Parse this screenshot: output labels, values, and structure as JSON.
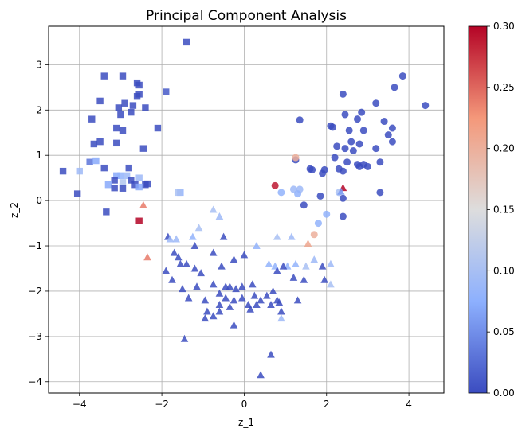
{
  "chart_data": {
    "type": "scatter",
    "title": "Principal Component Analysis",
    "xlabel": "z_1",
    "ylabel": "z_2",
    "xlim": [
      -4.75,
      4.85
    ],
    "ylim": [
      -4.25,
      3.85
    ],
    "xticks": [
      -4,
      -2,
      0,
      2,
      4
    ],
    "yticks": [
      -4,
      -3,
      -2,
      -1,
      0,
      1,
      2,
      3
    ],
    "grid": true,
    "colorbar": {
      "colormap": "coolwarm",
      "range": [
        0.0,
        0.3
      ],
      "ticks": [
        "0.00",
        "0.05",
        "0.10",
        "0.15",
        "0.20",
        "0.25",
        "0.30"
      ]
    },
    "series": [
      {
        "marker": "square",
        "points": [
          [
            -1.4,
            3.5,
            0.0
          ],
          [
            -3.4,
            2.75,
            0.0
          ],
          [
            -2.95,
            2.75,
            0.0
          ],
          [
            -2.6,
            2.6,
            0.0
          ],
          [
            -2.55,
            2.55,
            0.0
          ],
          [
            -2.55,
            2.35,
            0.0
          ],
          [
            -2.6,
            2.3,
            0.0
          ],
          [
            -1.9,
            2.4,
            0.01
          ],
          [
            -3.5,
            2.2,
            0.0
          ],
          [
            -2.9,
            2.15,
            0.0
          ],
          [
            -3.05,
            2.05,
            0.0
          ],
          [
            -2.7,
            2.1,
            0.0
          ],
          [
            -2.4,
            2.05,
            0.0
          ],
          [
            -2.75,
            1.95,
            0.0
          ],
          [
            -3.0,
            1.9,
            0.0
          ],
          [
            -3.7,
            1.8,
            0.0
          ],
          [
            -3.1,
            1.6,
            0.0
          ],
          [
            -2.95,
            1.55,
            0.0
          ],
          [
            -2.1,
            1.6,
            0.0
          ],
          [
            -3.5,
            1.3,
            0.0
          ],
          [
            -3.65,
            1.25,
            0.0
          ],
          [
            -3.1,
            1.27,
            0.0
          ],
          [
            -2.45,
            1.15,
            0.0
          ],
          [
            -3.75,
            0.85,
            0.03
          ],
          [
            -3.6,
            0.88,
            0.07
          ],
          [
            -4.4,
            0.65,
            0.0
          ],
          [
            -4.0,
            0.65,
            0.09
          ],
          [
            -3.4,
            0.72,
            0.0
          ],
          [
            -2.8,
            0.72,
            0.0
          ],
          [
            -3.1,
            0.55,
            0.07
          ],
          [
            -3.0,
            0.55,
            0.08
          ],
          [
            -2.85,
            0.55,
            0.09
          ],
          [
            -3.15,
            0.45,
            0.0
          ],
          [
            -2.75,
            0.45,
            0.0
          ],
          [
            -2.55,
            0.5,
            0.09
          ],
          [
            -3.3,
            0.35,
            0.07
          ],
          [
            -2.95,
            0.4,
            0.11
          ],
          [
            -2.65,
            0.35,
            0.0
          ],
          [
            -2.4,
            0.35,
            0.0
          ],
          [
            -2.35,
            0.37,
            0.0
          ],
          [
            -3.15,
            0.28,
            0.0
          ],
          [
            -2.95,
            0.27,
            0.0
          ],
          [
            -2.55,
            0.3,
            0.07
          ],
          [
            -4.05,
            0.15,
            0.0
          ],
          [
            -1.55,
            0.18,
            0.08
          ],
          [
            -1.6,
            0.18,
            0.1
          ],
          [
            -3.35,
            -0.25,
            0.0
          ],
          [
            -2.55,
            -0.45,
            0.3
          ]
        ]
      },
      {
        "marker": "circle",
        "points": [
          [
            4.4,
            2.1,
            0.0
          ],
          [
            3.85,
            2.75,
            0.0
          ],
          [
            3.65,
            2.5,
            0.0
          ],
          [
            3.2,
            2.15,
            0.0
          ],
          [
            2.4,
            2.35,
            0.0
          ],
          [
            2.85,
            1.95,
            0.0
          ],
          [
            3.4,
            1.75,
            0.0
          ],
          [
            3.6,
            1.6,
            0.0
          ],
          [
            2.45,
            1.9,
            0.0
          ],
          [
            2.75,
            1.8,
            0.0
          ],
          [
            2.1,
            1.65,
            0.0
          ],
          [
            2.15,
            1.62,
            0.0
          ],
          [
            2.55,
            1.55,
            0.0
          ],
          [
            2.9,
            1.55,
            0.0
          ],
          [
            3.5,
            1.45,
            0.0
          ],
          [
            1.35,
            1.78,
            0.0
          ],
          [
            2.6,
            1.3,
            0.0
          ],
          [
            2.8,
            1.25,
            0.0
          ],
          [
            3.6,
            1.3,
            0.0
          ],
          [
            2.25,
            1.2,
            0.0
          ],
          [
            2.45,
            1.15,
            0.0
          ],
          [
            2.65,
            1.1,
            0.0
          ],
          [
            3.2,
            1.15,
            0.0
          ],
          [
            2.2,
            0.95,
            0.0
          ],
          [
            3.3,
            0.85,
            0.0
          ],
          [
            2.9,
            0.8,
            0.0
          ],
          [
            2.5,
            0.85,
            0.0
          ],
          [
            1.25,
            0.9,
            0.0
          ],
          [
            2.8,
            0.75,
            0.0
          ],
          [
            3.0,
            0.75,
            0.0
          ],
          [
            2.75,
            0.8,
            0.0
          ],
          [
            1.6,
            0.7,
            0.0
          ],
          [
            1.65,
            0.68,
            0.0
          ],
          [
            1.95,
            0.68,
            0.0
          ],
          [
            2.3,
            0.7,
            0.0
          ],
          [
            2.4,
            0.65,
            0.0
          ],
          [
            1.9,
            0.6,
            0.0
          ],
          [
            1.25,
            0.95,
            0.2
          ],
          [
            0.75,
            0.33,
            0.29
          ],
          [
            1.35,
            0.25,
            0.09
          ],
          [
            1.2,
            0.25,
            0.09
          ],
          [
            0.9,
            0.18,
            0.08
          ],
          [
            1.3,
            0.15,
            0.08
          ],
          [
            1.85,
            0.1,
            0.0
          ],
          [
            2.3,
            0.18,
            0.1
          ],
          [
            3.3,
            0.18,
            0.0
          ],
          [
            2.4,
            0.05,
            0.0
          ],
          [
            1.45,
            -0.1,
            0.0
          ],
          [
            2.0,
            -0.3,
            0.08
          ],
          [
            2.4,
            -0.35,
            0.0
          ],
          [
            1.8,
            -0.5,
            0.08
          ],
          [
            1.7,
            -0.75,
            0.2
          ]
        ]
      },
      {
        "marker": "triangle",
        "points": [
          [
            -2.45,
            -0.1,
            0.24
          ],
          [
            -0.75,
            -0.2,
            0.1
          ],
          [
            -0.6,
            -0.35,
            0.09
          ],
          [
            -2.35,
            -1.25,
            0.24
          ],
          [
            2.4,
            0.28,
            0.3
          ],
          [
            2.35,
            0.2,
            0.06
          ],
          [
            -1.1,
            -0.6,
            0.1
          ],
          [
            -1.85,
            -0.8,
            0.0
          ],
          [
            -1.25,
            -0.8,
            0.08
          ],
          [
            -1.65,
            -0.85,
            0.09
          ],
          [
            -1.8,
            -0.85,
            0.09
          ],
          [
            -0.5,
            -0.8,
            0.0
          ],
          [
            1.55,
            -0.95,
            0.21
          ],
          [
            0.8,
            -0.8,
            0.1
          ],
          [
            1.15,
            -0.8,
            0.09
          ],
          [
            -1.2,
            -1.0,
            0.0
          ],
          [
            -0.75,
            -1.15,
            0.0
          ],
          [
            0.0,
            -1.2,
            0.0
          ],
          [
            -0.25,
            -1.3,
            0.0
          ],
          [
            0.3,
            -1.0,
            0.08
          ],
          [
            0.75,
            -1.45,
            0.08
          ],
          [
            1.05,
            -1.45,
            0.08
          ],
          [
            1.25,
            -1.4,
            0.08
          ],
          [
            1.5,
            -1.45,
            0.1
          ],
          [
            1.7,
            -1.3,
            0.09
          ],
          [
            2.1,
            -1.4,
            0.09
          ],
          [
            -1.7,
            -1.15,
            0.0
          ],
          [
            -1.6,
            -1.25,
            0.0
          ],
          [
            -1.55,
            -1.4,
            0.0
          ],
          [
            -1.4,
            -1.4,
            0.0
          ],
          [
            -1.2,
            -1.5,
            0.0
          ],
          [
            -1.05,
            -1.6,
            0.0
          ],
          [
            -0.55,
            -1.45,
            0.0
          ],
          [
            0.6,
            -1.4,
            0.08
          ],
          [
            0.8,
            -1.55,
            0.0
          ],
          [
            0.95,
            -1.45,
            0.0
          ],
          [
            1.2,
            -1.7,
            0.0
          ],
          [
            1.45,
            -1.75,
            0.0
          ],
          [
            1.9,
            -1.45,
            0.0
          ],
          [
            1.95,
            -1.75,
            0.0
          ],
          [
            -1.9,
            -1.55,
            0.0
          ],
          [
            -1.75,
            -1.75,
            0.0
          ],
          [
            -1.5,
            -1.95,
            0.0
          ],
          [
            -1.15,
            -1.9,
            0.0
          ],
          [
            -0.75,
            -1.85,
            0.0
          ],
          [
            -0.45,
            -1.9,
            0.0
          ],
          [
            -0.35,
            -1.9,
            0.0
          ],
          [
            -0.2,
            -1.95,
            0.0
          ],
          [
            -0.05,
            -1.9,
            0.0
          ],
          [
            0.2,
            -1.85,
            0.0
          ],
          [
            0.7,
            -2.0,
            0.0
          ],
          [
            2.1,
            -1.85,
            0.1
          ],
          [
            -0.6,
            -2.05,
            0.0
          ],
          [
            -0.45,
            -2.15,
            0.0
          ],
          [
            -0.25,
            -2.2,
            0.0
          ],
          [
            -0.05,
            -2.15,
            0.0
          ],
          [
            0.25,
            -2.1,
            0.0
          ],
          [
            0.4,
            -2.2,
            0.0
          ],
          [
            0.55,
            -2.1,
            0.0
          ],
          [
            0.8,
            -2.2,
            0.0
          ],
          [
            1.3,
            -2.2,
            0.0
          ],
          [
            -1.35,
            -2.15,
            0.0
          ],
          [
            -0.95,
            -2.2,
            0.0
          ],
          [
            -0.6,
            -2.3,
            0.0
          ],
          [
            -0.35,
            -2.35,
            0.0
          ],
          [
            0.1,
            -2.3,
            0.0
          ],
          [
            0.3,
            -2.3,
            0.0
          ],
          [
            0.65,
            -2.3,
            0.0
          ],
          [
            0.85,
            -2.25,
            0.0
          ],
          [
            -0.6,
            -2.45,
            0.0
          ],
          [
            -0.9,
            -2.45,
            0.0
          ],
          [
            0.15,
            -2.4,
            0.0
          ],
          [
            0.9,
            -2.45,
            0.0
          ],
          [
            -0.95,
            -2.6,
            0.0
          ],
          [
            -0.75,
            -2.55,
            0.0
          ],
          [
            -0.25,
            -2.75,
            0.0
          ],
          [
            0.9,
            -2.6,
            0.09
          ],
          [
            -1.45,
            -3.05,
            0.0
          ],
          [
            0.65,
            -3.4,
            0.0
          ],
          [
            0.4,
            -3.85,
            0.0
          ]
        ]
      }
    ]
  }
}
